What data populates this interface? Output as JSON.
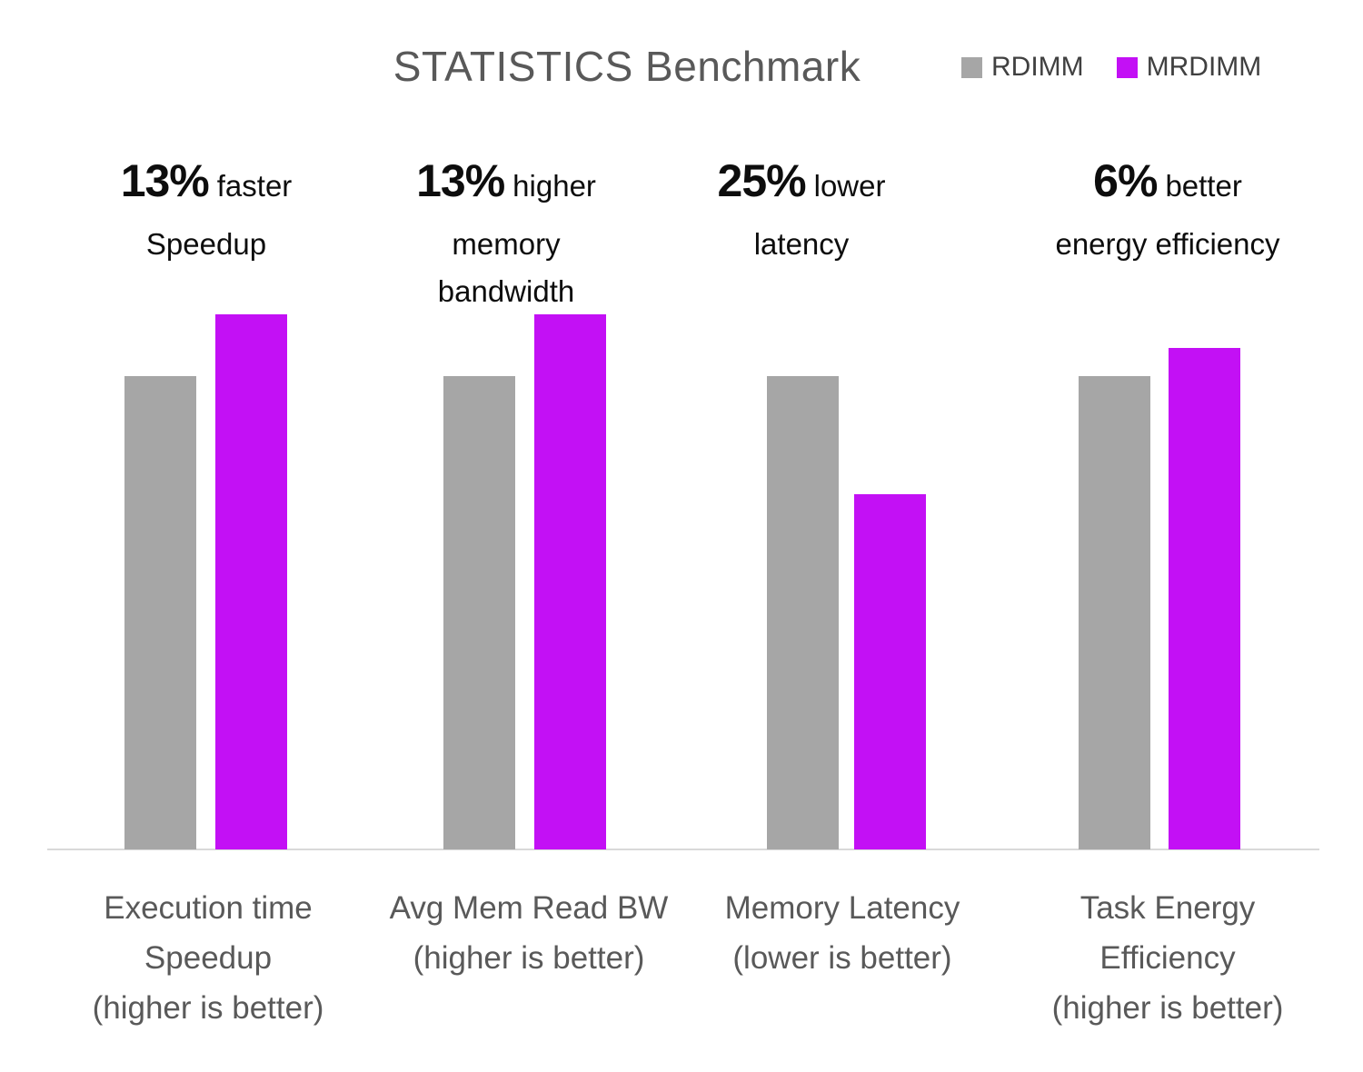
{
  "title": "STATISTICS Benchmark",
  "colors": {
    "rdimm_bar": "#A6A6A6",
    "mrdimm_bar": "#C310F5",
    "title_text": "#595959",
    "legend_text": "#404040",
    "category_text": "#595959",
    "annotation_text": "#0d0d0d",
    "axis_line": "#D9D9D9",
    "background": "#ffffff"
  },
  "legend": {
    "position": "top-right",
    "items": [
      {
        "label": "RDIMM",
        "color": "#A6A6A6"
      },
      {
        "label": "MRDIMM",
        "color": "#C310F5"
      }
    ]
  },
  "chart_data": {
    "type": "bar",
    "title": "STATISTICS Benchmark",
    "xlabel": "",
    "ylabel": "",
    "ylim": [
      0,
      1.2
    ],
    "grid": false,
    "legend_position": "top-right",
    "categories": [
      "Execution time Speedup (higher is better)",
      "Avg Mem Read BW (higher is better)",
      "Memory Latency (lower is better)",
      "Task Energy Efficiency (higher is better)"
    ],
    "category_lines": [
      [
        "Execution time",
        "Speedup",
        "(higher is better)"
      ],
      [
        "Avg Mem Read BW",
        "(higher is better)"
      ],
      [
        "Memory Latency",
        "(lower is better)"
      ],
      [
        "Task Energy",
        "Efficiency",
        "(higher is better)"
      ]
    ],
    "series": [
      {
        "name": "RDIMM",
        "color": "#A6A6A6",
        "values": [
          1.0,
          1.0,
          1.0,
          1.0
        ]
      },
      {
        "name": "MRDIMM",
        "color": "#C310F5",
        "values": [
          1.13,
          1.13,
          0.75,
          1.06
        ]
      }
    ],
    "annotations": [
      {
        "big": "13%",
        "small": "faster",
        "rest_lines": [
          "Speedup"
        ]
      },
      {
        "big": "13%",
        "small": "higher",
        "rest_lines": [
          "memory",
          "bandwidth"
        ]
      },
      {
        "big": "25%",
        "small": "lower",
        "rest_lines": [
          "latency"
        ]
      },
      {
        "big": "6%",
        "small": "better",
        "rest_lines": [
          "energy efficiency"
        ]
      }
    ]
  }
}
